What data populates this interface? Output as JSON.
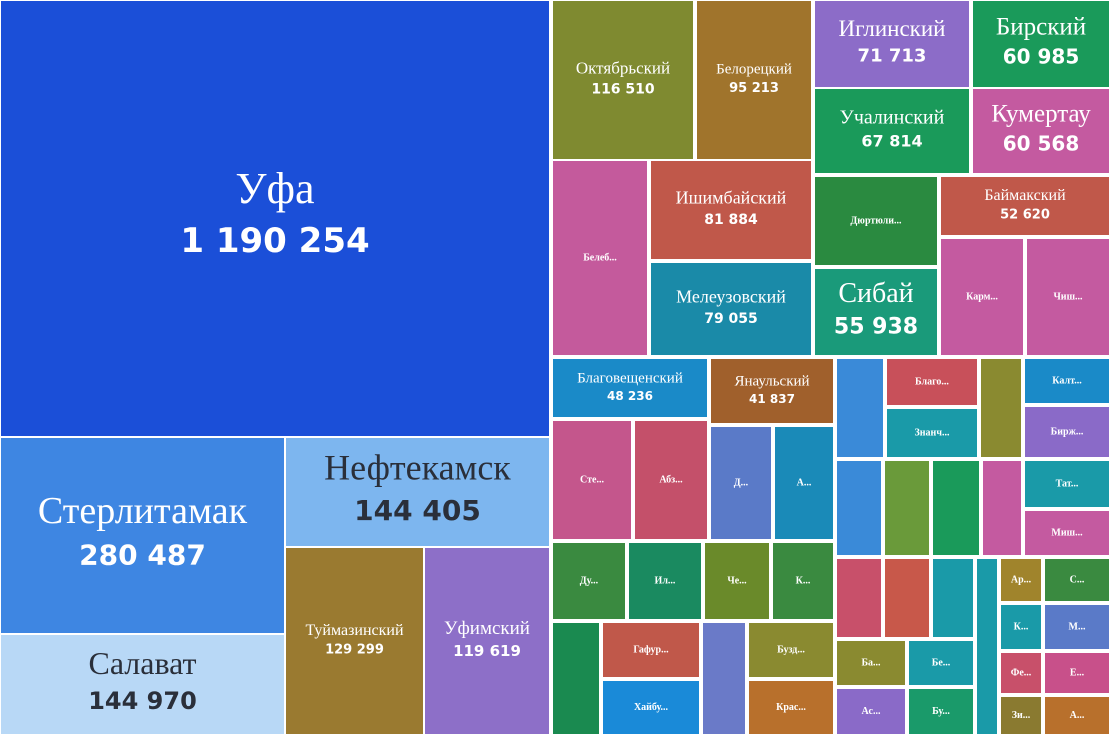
{
  "chart_data": {
    "type": "treemap",
    "categories": [
      "Уфа",
      "Стерлитамак",
      "Салават",
      "Нефтекамск",
      "Туймазинский",
      "Уфимский",
      "Октябрьский",
      "Белорецкий",
      "Иглинский",
      "Бирский",
      "Учалинский",
      "Кумертау",
      "Белеб...",
      "Ишимбайский",
      "Мелеузовский",
      "Дюртюли...",
      "Баймакский",
      "Сибай",
      "Карм...",
      "Чиш...",
      "Благовещенский",
      "Янаульский",
      "Сте...",
      "Абз...",
      "Д...",
      "А...",
      null,
      "Благо...",
      "Знанч...",
      null,
      "Калт...",
      "Бирж...",
      null,
      null,
      null,
      null,
      "Тат...",
      "Миш...",
      "Ду...",
      "Ил...",
      "Че...",
      "К...",
      null,
      "Гафур...",
      "Хайбу...",
      null,
      "Бузд...",
      "Крас...",
      null,
      null,
      null,
      "Ба...",
      "Бе...",
      "Ас...",
      "Бу...",
      null,
      "Ар...",
      "С...",
      "К...",
      "М...",
      "Фе...",
      "Е...",
      "Зи...",
      "А..."
    ],
    "values": [
      1190254,
      280487,
      144970,
      144405,
      129299,
      119619,
      116510,
      95213,
      71713,
      60985,
      67814,
      60568,
      95000,
      81884,
      79055,
      56000,
      52620,
      55938,
      49000,
      49000,
      48236,
      41837,
      46000,
      43000,
      35000,
      34000,
      24000,
      22000,
      23000,
      21000,
      20000,
      22000,
      22000,
      22000,
      22000,
      19000,
      20000,
      19000,
      29000,
      28000,
      26000,
      24000,
      27000,
      27000,
      27000,
      25000,
      24000,
      23000,
      18000,
      18000,
      17000,
      16000,
      15000,
      16000,
      15000,
      19000,
      9000,
      14000,
      9500,
      15000,
      9000,
      14000,
      8000,
      13000
    ],
    "value_labels": [
      "1 190 254",
      "280 487",
      "144 970",
      "144 405",
      "129 299",
      "119 619",
      "116 510",
      "95 213",
      "71 713",
      "60 985",
      "67 814",
      "60 568",
      null,
      "81 884",
      "79 055",
      null,
      "52 620",
      "55 938",
      null,
      null,
      "48 236",
      "41 837",
      null,
      null,
      null,
      null,
      null,
      null,
      null,
      null,
      null,
      null,
      null,
      null,
      null,
      null,
      null,
      null,
      null,
      null,
      null,
      null,
      null,
      null,
      null,
      null,
      null,
      null,
      null,
      null,
      null,
      null,
      null,
      null,
      null,
      null,
      null,
      null,
      null,
      null,
      null,
      null,
      null,
      null
    ],
    "colors": [
      "#1b4fd8",
      "#3e86e2",
      "#b8d8f6",
      "#7db6ef",
      "#9a7a30",
      "#8d6fc8",
      "#7f8a30",
      "#a0742c",
      "#8c6cc8",
      "#1a9a5a",
      "#1a9a5a",
      "#c45aa0",
      "#c45a9c",
      "#c0584a",
      "#1a8aa8",
      "#2a8a40",
      "#c0584a",
      "#1a9a7a",
      "#c45aa0",
      "#c45aa0",
      "#1a8ac8",
      "#a0602c",
      "#c4568c",
      "#c4506a",
      "#5a7ac8",
      "#1a8ab8",
      "#3a8ad8",
      "#c8505a",
      "#1a9aa8",
      "#8a8a30",
      "#1a8ac8",
      "#8a6ac8",
      "#3a8ad8",
      "#6a9a3a",
      "#1a9a5a",
      "#c45aa0",
      "#1a9aa8",
      "#c45aa0",
      "#3a8a40",
      "#1a8a60",
      "#6a8a2a",
      "#3a8a40",
      "#1a8a50",
      "#c0584a",
      "#1a8ad8",
      "#6a7ac8",
      "#8a8a30",
      "#b8702c",
      "#c8506a",
      "#c8584a",
      "#1a9aa8",
      "#8a8a30",
      "#1a9aa8",
      "#8a6ac8",
      "#1a9a6a",
      "#1a9aa8",
      "#a0842c",
      "#3a8a40",
      "#1a9aa8",
      "#5a7ac8",
      "#c8506a",
      "#c8508a",
      "#8a7a30",
      "#b8702c"
    ]
  }
}
